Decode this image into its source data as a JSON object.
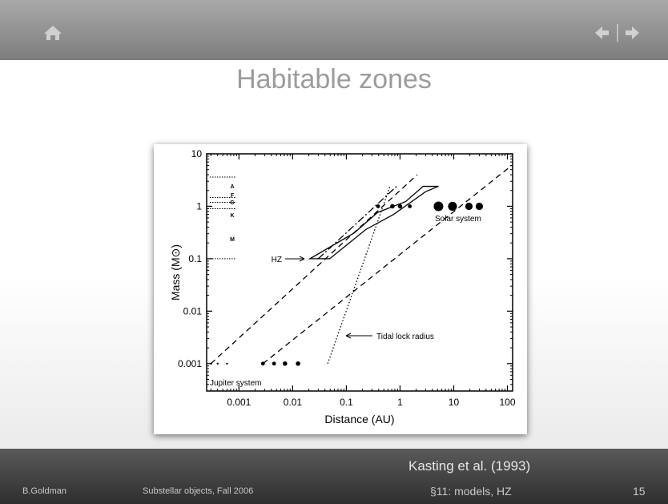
{
  "header": {
    "title": "Habitable zones"
  },
  "chart_data": {
    "type": "line",
    "x_scale": "log",
    "y_scale": "log",
    "color": "#000000",
    "xlabel": "Distance (AU)",
    "ylabel": "Mass (M⊙)",
    "xlim": [
      0.00025,
      125
    ],
    "ylim": [
      0.0003,
      10
    ],
    "xticks": [
      0.001,
      0.01,
      0.1,
      1,
      10,
      100
    ],
    "yticks": [
      10,
      1,
      0.1,
      0.01,
      0.001
    ],
    "series": [
      {
        "style": "dashed",
        "x": [
          0.0003,
          2.1
        ],
        "values": [
          0.001,
          4
        ]
      },
      {
        "style": "dashed",
        "x": [
          0.0028,
          120
        ],
        "values": [
          0.001,
          6
        ]
      },
      {
        "style": "dashdot",
        "x": [
          0.03,
          0.9
        ],
        "values": [
          0.1,
          2.5
        ]
      },
      {
        "style": "dotted",
        "x": [
          0.045,
          0.66
        ],
        "values": [
          0.001,
          2.5
        ]
      },
      {
        "style": "solid",
        "closed": true,
        "x": [
          0.021,
          0.049,
          0.23,
          0.76,
          3.0,
          5.2,
          2.7,
          1.27,
          0.38,
          0.14
        ],
        "values": [
          0.1,
          0.1,
          0.36,
          0.7,
          1.9,
          2.4,
          2.4,
          1.23,
          0.76,
          0.31
        ]
      }
    ],
    "points": [
      {
        "x": [
          0.39,
          0.72,
          1,
          1.52,
          5.2,
          9.5,
          19.2,
          30
        ],
        "values": [
          1,
          1,
          1,
          1,
          1,
          1,
          1,
          1
        ],
        "sizes": [
          1.2,
          1.4,
          1.4,
          1.2,
          3,
          2.8,
          2.3,
          2.3
        ]
      },
      {
        "x": [
          0.0003,
          0.0004,
          0.0006,
          0.0028,
          0.0045,
          0.0072,
          0.0126
        ],
        "values": [
          0.001,
          0.001,
          0.001,
          0.001,
          0.001,
          0.001,
          0.001
        ],
        "sizes": [
          0.6,
          0.6,
          0.6,
          1.2,
          1.2,
          1.4,
          1.4
        ]
      }
    ],
    "star_boundaries": [
      3.6,
      1.47,
      1.19,
      0.9,
      0.1
    ],
    "annotations": [
      "HZ",
      "Solar system",
      "Tidal lock radius",
      "Jupiter system",
      "A",
      "F",
      "G",
      "K",
      "M"
    ]
  },
  "footer": {
    "citation": "Kasting et al. (1993)",
    "author": "B.Goldman",
    "course": "Substellar objects, Fall 2006",
    "section": "§11: models, HZ",
    "page": "15"
  }
}
